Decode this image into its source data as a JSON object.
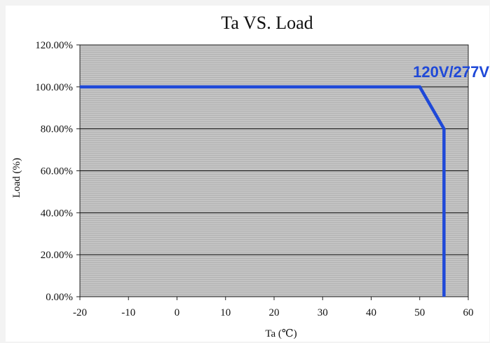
{
  "chart_data": {
    "type": "line",
    "title": "Ta VS. Load",
    "xlabel": "Ta (℃)",
    "ylabel": "Load (%)",
    "xlim": [
      -20,
      60
    ],
    "ylim": [
      0,
      120
    ],
    "x_ticks": [
      -20,
      -10,
      0,
      10,
      20,
      30,
      40,
      50,
      60
    ],
    "y_ticks": [
      0,
      20,
      40,
      60,
      80,
      100,
      120
    ],
    "y_tick_labels": [
      "0.00%",
      "20.00%",
      "40.00%",
      "60.00%",
      "80.00%",
      "100.00%",
      "120.00%"
    ],
    "grid": true,
    "series": [
      {
        "name": "120V/277V",
        "color": "#1f49d8",
        "points": [
          [
            -20,
            100
          ],
          [
            50,
            100
          ],
          [
            55,
            80
          ],
          [
            55,
            0
          ]
        ]
      }
    ]
  }
}
